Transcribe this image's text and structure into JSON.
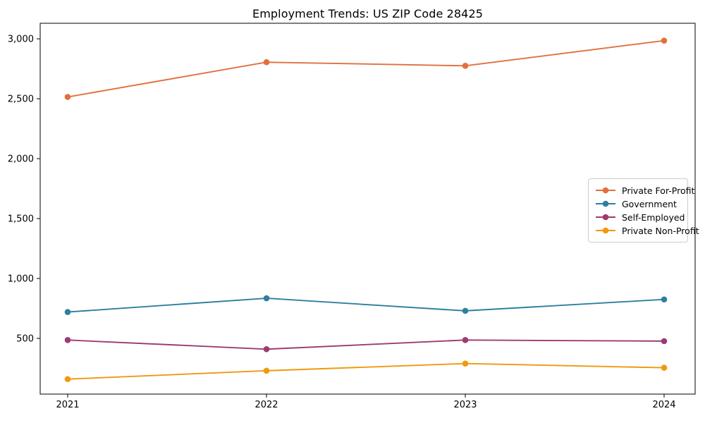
{
  "chart_data": {
    "type": "line",
    "title": "Employment Trends: US ZIP Code 28425",
    "x": [
      "2021",
      "2022",
      "2023",
      "2024"
    ],
    "xlabel": "",
    "ylabel": "",
    "ylim": [
      35,
      3130
    ],
    "yticks": [
      500,
      1000,
      1500,
      2000,
      2500,
      3000
    ],
    "ytick_labels": [
      "500",
      "1,000",
      "1,500",
      "2,000",
      "2,500",
      "3,000"
    ],
    "grid": false,
    "legend_position": "center right",
    "series": [
      {
        "name": "Private For-Profit",
        "color": "#e1703c",
        "values": [
          2515,
          2805,
          2775,
          2985
        ]
      },
      {
        "name": "Government",
        "color": "#2d7fa0",
        "values": [
          720,
          835,
          730,
          825
        ]
      },
      {
        "name": "Self-Employed",
        "color": "#9d3b73",
        "values": [
          486,
          410,
          486,
          477
        ]
      },
      {
        "name": "Private Non-Profit",
        "color": "#f0990e",
        "values": [
          160,
          230,
          290,
          255
        ]
      }
    ],
    "background_color": "#ffffff",
    "axis_color": "#000000"
  }
}
